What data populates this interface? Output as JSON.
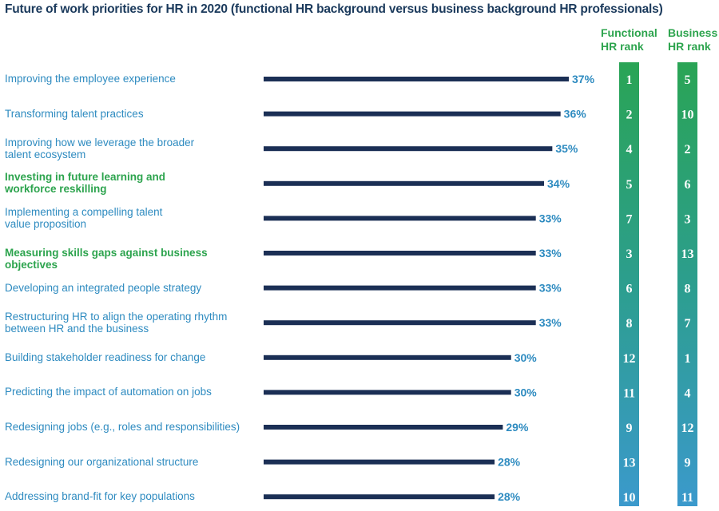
{
  "chart_data": {
    "type": "bar",
    "orientation": "horizontal",
    "title": "Future of work priorities for HR in 2020 (functional HR background versus business background HR professionals)",
    "categories": [
      "Improving the employee experience",
      "Transforming talent practices",
      "Improving how we leverage the broader talent ecosystem",
      "Investing in future learning and workforce reskilling",
      "Implementing a compelling talent value proposition",
      "Measuring skills gaps against business objectives",
      "Developing an integrated people strategy",
      "Restructuring HR to align the operating rhythm between HR and the business",
      "Building stakeholder readiness for change",
      "Predicting the impact of automation on jobs",
      "Redesigning jobs (e.g., roles and responsibilities)",
      "Redesigning our organizational structure",
      "Addressing brand-fit for key populations"
    ],
    "category_lines": [
      [
        "Improving the employee experience"
      ],
      [
        "Transforming talent practices"
      ],
      [
        "Improving how we leverage the broader",
        "talent ecosystem"
      ],
      [
        "Investing in future learning and",
        "workforce reskilling"
      ],
      [
        "Implementing a compelling talent",
        "value proposition"
      ],
      [
        "Measuring skills gaps against business objectives"
      ],
      [
        "Developing an integrated people strategy"
      ],
      [
        "Restructuring HR to align the operating rhythm",
        "between HR and the business"
      ],
      [
        "Building stakeholder readiness for change"
      ],
      [
        "Predicting the impact of automation on jobs"
      ],
      [
        "Redesigning jobs (e.g., roles and responsibilities)"
      ],
      [
        "Redesigning our organizational structure"
      ],
      [
        "Addressing brand-fit for key populations"
      ]
    ],
    "highlighted": [
      false,
      false,
      false,
      true,
      false,
      true,
      false,
      false,
      false,
      false,
      false,
      false,
      false
    ],
    "values": [
      37,
      36,
      35,
      34,
      33,
      33,
      33,
      33,
      30,
      30,
      29,
      28,
      28
    ],
    "value_labels": [
      "37%",
      "36%",
      "35%",
      "34%",
      "33%",
      "33%",
      "33%",
      "33%",
      "30%",
      "30%",
      "29%",
      "28%",
      "28%"
    ],
    "xlim": [
      0,
      37
    ],
    "functional_rank": {
      "header_lines": [
        "Functional",
        "HR rank"
      ],
      "values": [
        1,
        2,
        4,
        5,
        7,
        3,
        6,
        8,
        12,
        11,
        9,
        13,
        10
      ]
    },
    "business_rank": {
      "header_lines": [
        "Business",
        "HR rank"
      ],
      "values": [
        5,
        10,
        2,
        6,
        3,
        13,
        8,
        7,
        1,
        4,
        12,
        9,
        11
      ]
    },
    "colors": {
      "bar": "#1b2f55",
      "label": "#2e8bc0",
      "highlight_label": "#2da44e",
      "value_label": "#2e8bc0",
      "rank_gradient_top": "#2aa455",
      "rank_gradient_bottom": "#3b99cc",
      "rank_text": "#ffffff"
    }
  }
}
